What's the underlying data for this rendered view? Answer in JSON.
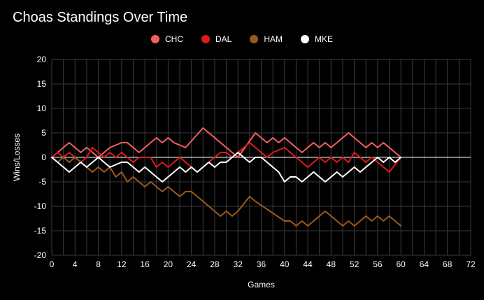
{
  "chart_data": {
    "type": "line",
    "title": "Choas Standings Over Time",
    "xlabel": "Games",
    "ylabel": "Wins/Losses",
    "xlim": [
      0,
      72
    ],
    "ylim": [
      -20,
      20
    ],
    "x_ticks": [
      0,
      4,
      8,
      12,
      16,
      20,
      24,
      28,
      32,
      36,
      40,
      44,
      48,
      52,
      56,
      60,
      64,
      68,
      72
    ],
    "y_ticks": [
      20,
      15,
      10,
      5,
      0,
      -5,
      -10,
      -15,
      -20
    ],
    "grid": true,
    "legend_position": "top-center",
    "series": [
      {
        "name": "CHC",
        "color": "#f06060",
        "x": [
          0,
          3,
          5,
          6,
          8,
          9,
          10,
          12,
          13,
          15,
          18,
          19,
          20,
          21,
          23,
          26,
          32,
          35,
          36,
          37,
          38,
          39,
          40,
          41,
          43,
          45,
          46,
          47,
          48,
          51,
          53,
          54,
          55,
          56,
          57,
          58,
          60
        ],
        "y": [
          0,
          3,
          1,
          2,
          0,
          1,
          2,
          3,
          3,
          1,
          4,
          3,
          4,
          3,
          2,
          6,
          0,
          5,
          4,
          3,
          4,
          3,
          4,
          3,
          1,
          3,
          2,
          3,
          2,
          5,
          3,
          2,
          3,
          2,
          3,
          2,
          0
        ]
      },
      {
        "name": "DAL",
        "color": "#e01919",
        "x": [
          0,
          1,
          2,
          3,
          5,
          6,
          7,
          9,
          10,
          11,
          12,
          13,
          14,
          15,
          17,
          18,
          19,
          20,
          22,
          24,
          25,
          26,
          29,
          30,
          31,
          32,
          34,
          35,
          37,
          38,
          40,
          42,
          44,
          45,
          46,
          47,
          48,
          49,
          50,
          51,
          52,
          53,
          54,
          55,
          56,
          58,
          60
        ],
        "y": [
          0,
          1,
          0,
          1,
          -1,
          0,
          2,
          0,
          1,
          0,
          1,
          0,
          -1,
          0,
          0,
          -2,
          -1,
          -2,
          0,
          -2,
          -3,
          -2,
          1,
          1,
          0,
          1,
          3,
          2,
          0,
          1,
          2,
          0,
          -2,
          -1,
          0,
          -1,
          0,
          -1,
          0,
          -1,
          1,
          0,
          -1,
          0,
          -1,
          -3,
          0
        ]
      },
      {
        "name": "HAM",
        "color": "#9a5a1c",
        "x": [
          0,
          1,
          2,
          3,
          4,
          6,
          7,
          8,
          9,
          10,
          11,
          12,
          13,
          14,
          15,
          16,
          17,
          18,
          19,
          20,
          22,
          23,
          24,
          29,
          30,
          31,
          32,
          34,
          35,
          40,
          41,
          42,
          43,
          44,
          47,
          49,
          50,
          51,
          52,
          54,
          55,
          56,
          57,
          58,
          60
        ],
        "y": [
          0,
          -1,
          0,
          -1,
          0,
          -2,
          -3,
          -2,
          -3,
          -2,
          -4,
          -3,
          -5,
          -4,
          -5,
          -6,
          -5,
          -6,
          -7,
          -6,
          -8,
          -7,
          -7,
          -12,
          -11,
          -12,
          -11,
          -8,
          -9,
          -13,
          -13,
          -14,
          -13,
          -14,
          -11,
          -13,
          -14,
          -13,
          -14,
          -12,
          -13,
          -12,
          -13,
          -12,
          -14
        ]
      },
      {
        "name": "MKE",
        "color": "#ffffff",
        "x": [
          0,
          3,
          5,
          6,
          8,
          9,
          10,
          12,
          13,
          15,
          16,
          17,
          18,
          19,
          20,
          21,
          22,
          23,
          24,
          25,
          26,
          27,
          28,
          29,
          30,
          31,
          32,
          33,
          34,
          35,
          36,
          37,
          38,
          39,
          40,
          41,
          42,
          43,
          44,
          45,
          46,
          47,
          48,
          49,
          50,
          51,
          52,
          53,
          54,
          55,
          56,
          57,
          58,
          59,
          60
        ],
        "y": [
          0,
          -3,
          -1,
          -2,
          0,
          -1,
          -2,
          -1,
          -1,
          -3,
          -2,
          -3,
          -4,
          -5,
          -4,
          -3,
          -2,
          -3,
          -2,
          -3,
          -2,
          -1,
          -2,
          -1,
          -1,
          0,
          1,
          0,
          -1,
          0,
          0,
          -1,
          -2,
          -3,
          -5,
          -4,
          -4,
          -5,
          -4,
          -3,
          -4,
          -5,
          -4,
          -3,
          -4,
          -3,
          -2,
          -3,
          -2,
          -1,
          0,
          -1,
          0,
          -1,
          0
        ]
      }
    ]
  }
}
